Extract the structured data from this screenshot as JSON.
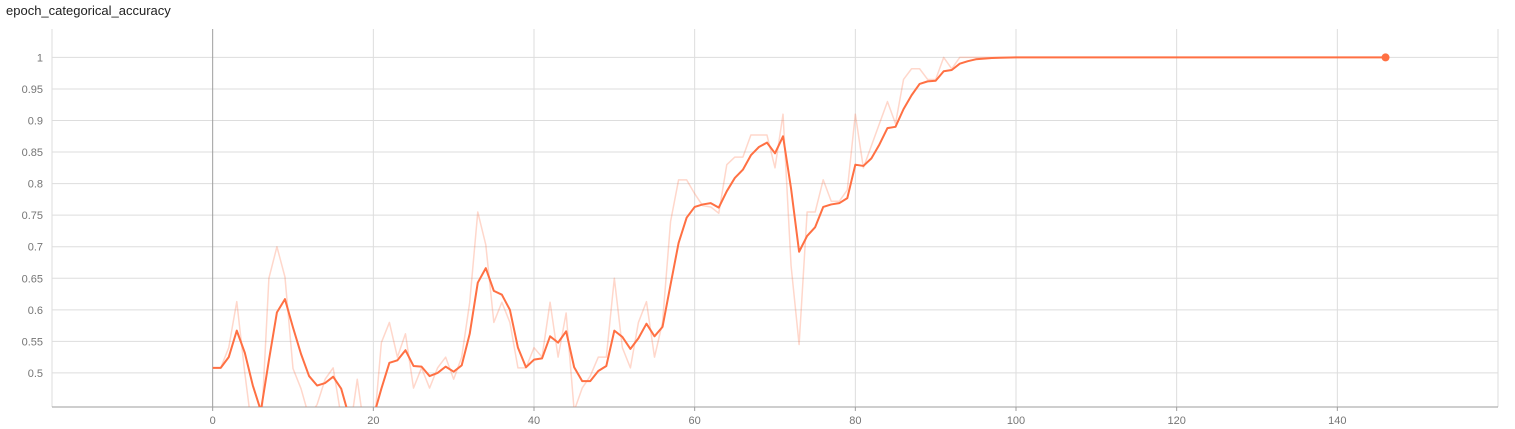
{
  "chart_data": {
    "type": "line",
    "title": "epoch_categorical_accuracy",
    "xlabel": "",
    "ylabel": "",
    "xlim": [
      -20,
      160
    ],
    "ylim": [
      0.446,
      1.045
    ],
    "x_ticks": [
      0,
      20,
      40,
      60,
      80,
      100,
      120,
      140
    ],
    "y_ticks": [
      0.5,
      0.55,
      0.6,
      0.65,
      0.7,
      0.75,
      0.8,
      0.85,
      0.9,
      0.95,
      1
    ],
    "y_tick_labels": [
      "0.5",
      "0.55",
      "0.6",
      "0.65",
      "0.7",
      "0.75",
      "0.8",
      "0.85",
      "0.9",
      "0.95",
      "1"
    ],
    "grid": true,
    "legend": "none",
    "colors": {
      "smoothed": "#ff7043",
      "raw": "#ff7043",
      "grid": "#dddddd",
      "axis": "#9e9e9e",
      "tick_text": "#757575"
    },
    "series": [
      {
        "style": "smoothed",
        "x": [
          0,
          1,
          2,
          3,
          4,
          5,
          6,
          7,
          8,
          9,
          10,
          11,
          12,
          13,
          14,
          15,
          16,
          17,
          18,
          19,
          20,
          21,
          22,
          23,
          24,
          25,
          26,
          27,
          28,
          29,
          30,
          31,
          32,
          33,
          34,
          35,
          36,
          37,
          38,
          39,
          40,
          41,
          42,
          43,
          44,
          45,
          46,
          47,
          48,
          49,
          50,
          51,
          52,
          53,
          54,
          55,
          56,
          57,
          58,
          59,
          60,
          61,
          62,
          63,
          64,
          65,
          66,
          67,
          68,
          69,
          70,
          71,
          72,
          73,
          74,
          75,
          76,
          77,
          78,
          79,
          80,
          81,
          82,
          83,
          84,
          85,
          86,
          87,
          88,
          89,
          90,
          91,
          92,
          93,
          94,
          95,
          96,
          97,
          98,
          100,
          105,
          110,
          120,
          130,
          140,
          146
        ],
        "y": [
          0.508,
          0.508,
          0.525,
          0.567,
          0.532,
          0.48,
          0.44,
          0.52,
          0.596,
          0.617,
          0.572,
          0.53,
          0.495,
          0.48,
          0.484,
          0.494,
          0.475,
          0.43,
          0.44,
          0.42,
          0.43,
          0.475,
          0.516,
          0.52,
          0.536,
          0.511,
          0.51,
          0.495,
          0.5,
          0.51,
          0.502,
          0.512,
          0.562,
          0.643,
          0.666,
          0.63,
          0.624,
          0.6,
          0.54,
          0.509,
          0.521,
          0.523,
          0.558,
          0.548,
          0.566,
          0.509,
          0.487,
          0.487,
          0.503,
          0.511,
          0.567,
          0.557,
          0.538,
          0.555,
          0.578,
          0.558,
          0.573,
          0.64,
          0.706,
          0.746,
          0.763,
          0.767,
          0.769,
          0.762,
          0.788,
          0.809,
          0.822,
          0.845,
          0.858,
          0.865,
          0.848,
          0.875,
          0.792,
          0.692,
          0.717,
          0.731,
          0.763,
          0.767,
          0.769,
          0.777,
          0.83,
          0.828,
          0.84,
          0.862,
          0.888,
          0.89,
          0.918,
          0.94,
          0.958,
          0.962,
          0.963,
          0.978,
          0.98,
          0.99,
          0.994,
          0.997,
          0.998,
          0.999,
          0.9995,
          1.0,
          1.0,
          1.0,
          1.0,
          1.0,
          1.0,
          1.0
        ]
      },
      {
        "style": "raw",
        "x": [
          0,
          1,
          2,
          3,
          4,
          5,
          6,
          7,
          8,
          9,
          10,
          11,
          12,
          13,
          14,
          15,
          16,
          17,
          18,
          19,
          20,
          21,
          22,
          23,
          24,
          25,
          26,
          27,
          28,
          29,
          30,
          31,
          32,
          33,
          34,
          35,
          36,
          37,
          38,
          39,
          40,
          41,
          42,
          43,
          44,
          45,
          46,
          47,
          48,
          49,
          50,
          51,
          52,
          53,
          54,
          55,
          56,
          57,
          58,
          59,
          60,
          61,
          62,
          63,
          64,
          65,
          66,
          67,
          68,
          69,
          70,
          71,
          72,
          73,
          74,
          75,
          76,
          77,
          78,
          79,
          80,
          81,
          82,
          83,
          84,
          85,
          86,
          87,
          88,
          89,
          90,
          91,
          92,
          93,
          94,
          95,
          96,
          97,
          98,
          100,
          105,
          110,
          120,
          130,
          140,
          146
        ],
        "y": [
          0.508,
          0.508,
          0.54,
          0.613,
          0.5,
          0.4,
          0.4,
          0.65,
          0.7,
          0.652,
          0.507,
          0.475,
          0.43,
          0.45,
          0.49,
          0.508,
          0.43,
          0.4,
          0.49,
          0.4,
          0.4,
          0.548,
          0.58,
          0.525,
          0.562,
          0.476,
          0.508,
          0.476,
          0.508,
          0.525,
          0.49,
          0.525,
          0.612,
          0.755,
          0.703,
          0.58,
          0.612,
          0.58,
          0.508,
          0.508,
          0.54,
          0.525,
          0.612,
          0.525,
          0.595,
          0.44,
          0.476,
          0.495,
          0.525,
          0.525,
          0.65,
          0.54,
          0.508,
          0.58,
          0.613,
          0.525,
          0.58,
          0.74,
          0.806,
          0.806,
          0.784,
          0.765,
          0.763,
          0.753,
          0.83,
          0.842,
          0.842,
          0.877,
          0.877,
          0.877,
          0.825,
          0.91,
          0.67,
          0.545,
          0.755,
          0.755,
          0.806,
          0.772,
          0.772,
          0.79,
          0.91,
          0.825,
          0.86,
          0.895,
          0.93,
          0.895,
          0.965,
          0.982,
          0.982,
          0.965,
          0.965,
          1.0,
          0.982,
          1.0,
          1.0,
          1.0,
          1.0,
          1.0,
          1.0,
          1.0,
          1.0,
          1.0,
          1.0,
          1.0,
          1.0,
          1.0
        ]
      }
    ],
    "last_point": {
      "x": 146,
      "y": 1.0
    }
  }
}
